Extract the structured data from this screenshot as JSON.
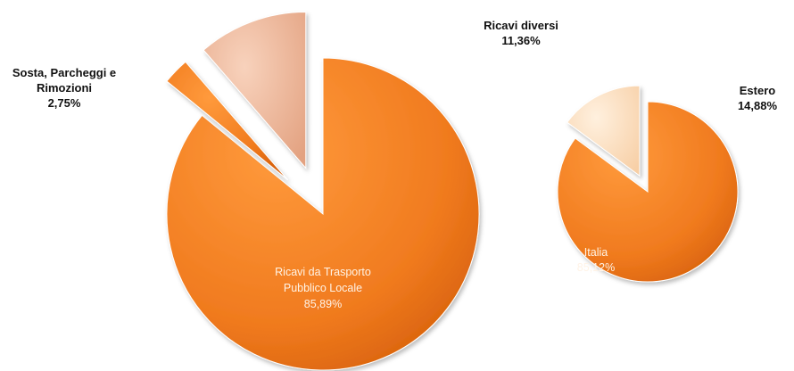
{
  "chart_data": [
    {
      "type": "pie",
      "title": "",
      "slices": [
        {
          "label_lines": [
            "Ricavi da Trasporto",
            "Pubblico Locale"
          ],
          "value_text": "85,89%",
          "value": 85.89,
          "color": "#f07a1e",
          "exploded": false,
          "label_position": "inside"
        },
        {
          "label_lines": [
            "Sosta, Parcheggi e",
            "Rimozioni"
          ],
          "value_text": "2,75%",
          "value": 2.75,
          "color": "#f08a30",
          "exploded": true,
          "label_position": "outside-left"
        },
        {
          "label_lines": [
            "Ricavi diversi"
          ],
          "value_text": "11,36%",
          "value": 11.36,
          "color": "#f2b89a",
          "exploded": true,
          "label_position": "outside-top"
        }
      ]
    },
    {
      "type": "pie",
      "title": "",
      "slices": [
        {
          "label_lines": [
            "Italia"
          ],
          "value_text": "85,12%",
          "value": 85.12,
          "color": "#f07a1e",
          "exploded": false,
          "label_position": "inside"
        },
        {
          "label_lines": [
            "Estero"
          ],
          "value_text": "14,88%",
          "value": 14.88,
          "color": "#fbdcc0",
          "exploded": true,
          "label_position": "outside-right"
        }
      ]
    }
  ]
}
